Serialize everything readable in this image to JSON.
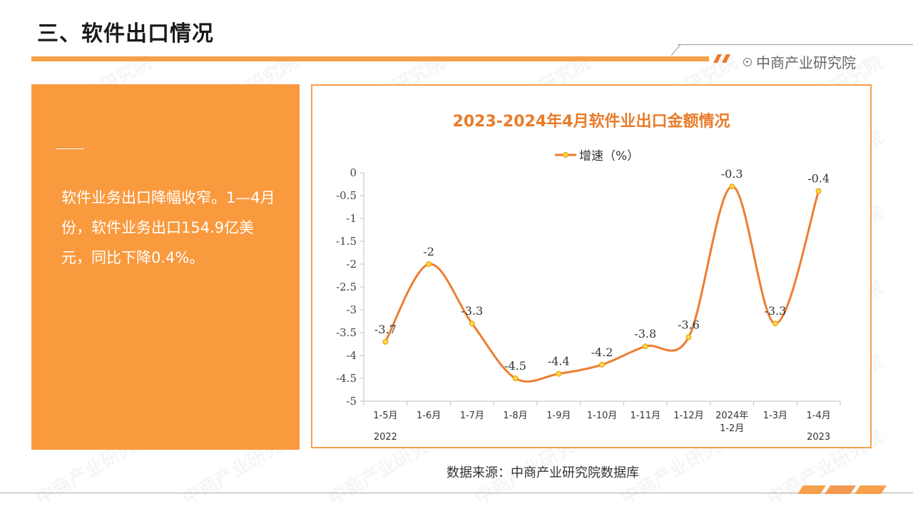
{
  "page": {
    "title": "三、软件出口情况",
    "brand": "中商产业研究院",
    "source": "数据来源：中商产业研究院数据库",
    "watermark": "中商产业研究院"
  },
  "left_panel": {
    "text": "软件业务出口降幅收窄。1—4月份，软件业务出口154.9亿美元，同比下降0.4%。"
  },
  "colors": {
    "accent": "#f7a04a",
    "panel": "#f99a3f",
    "line": "#ed7d31",
    "marker": "#ffd54a",
    "title": "#e97b2a"
  },
  "chart_data": {
    "type": "line",
    "title": "2023-2024年4月软件业出口金额情况",
    "categories": [
      "1-5月",
      "1-6月",
      "1-7月",
      "1-8月",
      "1-9月",
      "1-10月",
      "1-11月",
      "1-12月",
      "2024年\n1-2月",
      "1-3月",
      "1-4月"
    ],
    "year_labels": [
      {
        "text": "2022",
        "category_index": 0
      },
      {
        "text": "2023",
        "category_index": 10
      }
    ],
    "series": [
      {
        "name": "增速（%）",
        "values": [
          -3.7,
          -2,
          -3.3,
          -4.5,
          -4.4,
          -4.2,
          -3.8,
          -3.6,
          -0.3,
          -3.3,
          -0.4
        ],
        "data_labels": [
          "-3.7",
          "-2",
          "-3.3",
          "-4.5",
          "-4.4",
          "-4.2",
          "-3.8",
          "-3.6",
          "-0.3",
          "-3.3",
          "-0.4"
        ]
      }
    ],
    "ylim": [
      -5,
      0
    ],
    "yticks": [
      0,
      -0.5,
      -1,
      -1.5,
      -2,
      -2.5,
      -3,
      -3.5,
      -4,
      -4.5,
      -5
    ],
    "ytick_labels": [
      "0",
      "-0.5",
      "-1",
      "-1.5",
      "-2",
      "-2.5",
      "-3",
      "-3.5",
      "-4",
      "-4.5",
      "-5"
    ],
    "grid": false,
    "legend": "top-center",
    "smooth": true
  }
}
